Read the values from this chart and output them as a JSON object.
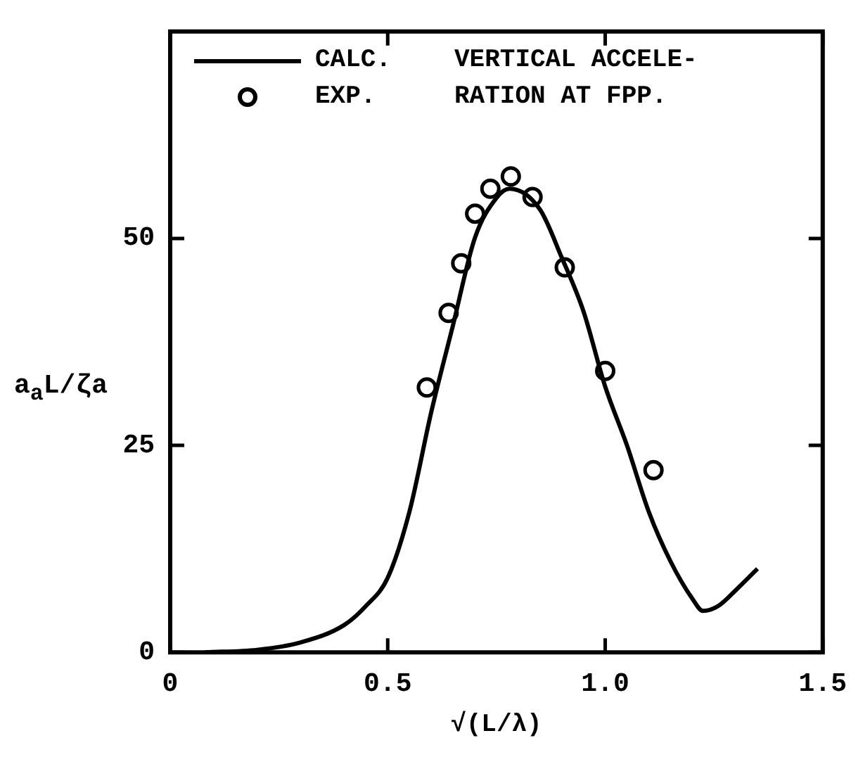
{
  "chart_data": {
    "type": "line",
    "xlabel": "√(L/λ)",
    "ylabel": "a$_{a}$L/ζa",
    "annotations": [
      "VERTICAL ACCELE-\nRATION AT FPP."
    ],
    "xlim": [
      0,
      1.5
    ],
    "ylim": [
      0,
      75
    ],
    "xticks": [
      0,
      0.5,
      {
        "value": 1,
        "label": "1.0"
      },
      1.5
    ],
    "yticks": [
      0,
      25,
      50
    ],
    "grid": false,
    "legend": "top left",
    "series": [
      {
        "name": "CALC.",
        "type": "line",
        "color": "#000000",
        "marker": "none",
        "line_style": "solid",
        "x": [
          0.08,
          0.2,
          0.3,
          0.4,
          0.45,
          0.5,
          0.55,
          0.6,
          0.65,
          0.7,
          0.75,
          0.78,
          0.85,
          0.9,
          0.95,
          1.0,
          1.05,
          1.1,
          1.15,
          1.2,
          1.225,
          1.26,
          1.3,
          1.35
        ],
        "values": [
          0,
          0.3,
          1.2,
          3.3,
          5.6,
          9,
          17,
          29,
          39.5,
          50,
          54.9,
          56,
          53.5,
          47.7,
          41.2,
          32.1,
          25,
          17,
          11,
          6.5,
          5,
          5.6,
          7.5,
          10.1
        ]
      },
      {
        "name": "EXP.",
        "type": "scatter",
        "color": "#000000",
        "marker": "circle",
        "x": [
          0.59,
          0.64,
          0.669,
          0.701,
          0.736,
          0.783,
          0.833,
          0.907,
          1.0,
          1.111
        ],
        "values": [
          32,
          41,
          47,
          53,
          56,
          57.5,
          55,
          46.5,
          34,
          22
        ]
      }
    ]
  }
}
